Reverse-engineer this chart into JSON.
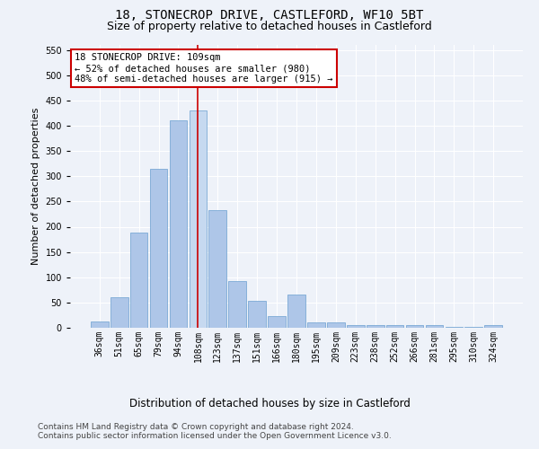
{
  "title": "18, STONECROP DRIVE, CASTLEFORD, WF10 5BT",
  "subtitle": "Size of property relative to detached houses in Castleford",
  "xlabel": "Distribution of detached houses by size in Castleford",
  "ylabel": "Number of detached properties",
  "categories": [
    "36sqm",
    "51sqm",
    "65sqm",
    "79sqm",
    "94sqm",
    "108sqm",
    "123sqm",
    "137sqm",
    "151sqm",
    "166sqm",
    "180sqm",
    "195sqm",
    "209sqm",
    "223sqm",
    "238sqm",
    "252sqm",
    "266sqm",
    "281sqm",
    "295sqm",
    "310sqm",
    "324sqm"
  ],
  "values": [
    12,
    60,
    188,
    315,
    410,
    430,
    233,
    93,
    53,
    23,
    65,
    10,
    10,
    5,
    5,
    5,
    5,
    5,
    2,
    2,
    5
  ],
  "bar_color": "#aec6e8",
  "bar_edge_color": "#6a9fd0",
  "highlight_index": 5,
  "highlight_bar_color": "#c6d9f0",
  "highlight_line_color": "#cc0000",
  "annotation_line1": "18 STONECROP DRIVE: 109sqm",
  "annotation_line2": "← 52% of detached houses are smaller (980)",
  "annotation_line3": "48% of semi-detached houses are larger (915) →",
  "annotation_box_color": "#ffffff",
  "annotation_box_edge_color": "#cc0000",
  "ylim": [
    0,
    560
  ],
  "yticks": [
    0,
    50,
    100,
    150,
    200,
    250,
    300,
    350,
    400,
    450,
    500,
    550
  ],
  "background_color": "#eef2f9",
  "footer1": "Contains HM Land Registry data © Crown copyright and database right 2024.",
  "footer2": "Contains public sector information licensed under the Open Government Licence v3.0.",
  "title_fontsize": 10,
  "subtitle_fontsize": 9,
  "xlabel_fontsize": 8.5,
  "ylabel_fontsize": 8,
  "tick_fontsize": 7,
  "annotation_fontsize": 7.5,
  "footer_fontsize": 6.5
}
